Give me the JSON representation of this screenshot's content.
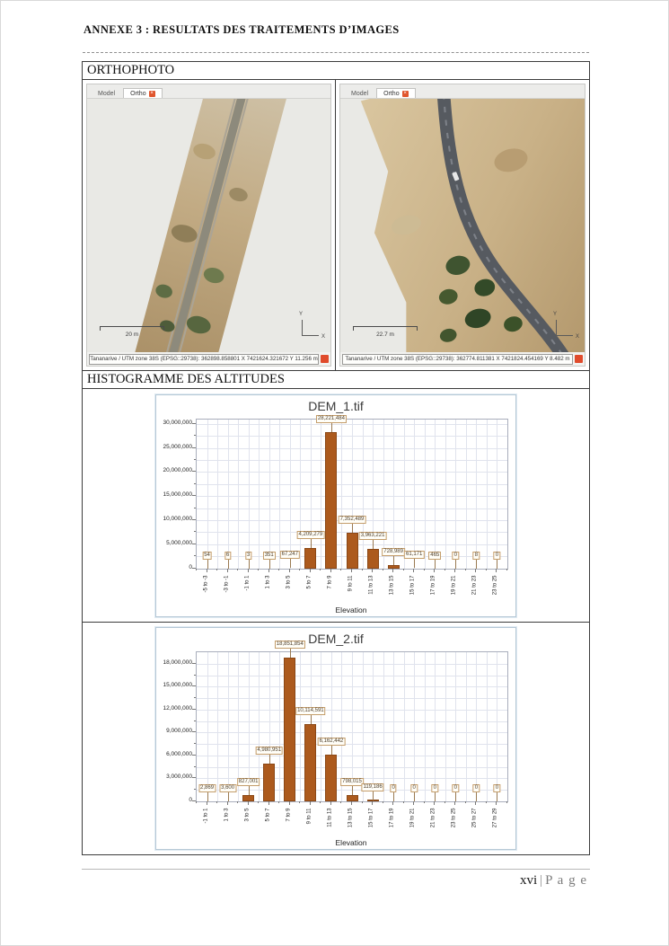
{
  "header": {
    "title": "ANNEXE 3 : RESULTATS DES TRAITEMENTS D’IMAGES"
  },
  "sections": {
    "orthophoto": "ORTHOPHOTO",
    "histogram": "HISTOGRAMME DES ALTITUDES"
  },
  "ortho_panels": [
    {
      "tab_model": "Model",
      "tab_ortho": "Ortho",
      "scale_label": "20 m",
      "axis_x": "X",
      "axis_y": "Y",
      "status": "Tananarive / UTM zone 38S (EPSG::29738): 362898.858801 X  7421624.321672 Y  11.256 m"
    },
    {
      "tab_model": "Model",
      "tab_ortho": "Ortho",
      "scale_label": "22.7 m",
      "axis_x": "X",
      "axis_y": "Y",
      "status": "Tananarive / UTM zone 38S (EPSG::29738): 362774.811381 X  7421824.454169 Y  8.482 m"
    }
  ],
  "icons": {
    "close_glyph": "×"
  },
  "colors": {
    "bar": "#ac5a1d",
    "value_box_border": "#c49d6b",
    "grid": "#e0e3ed",
    "panel_border": "#b6c8d6",
    "tab_close_red": "#e0552d",
    "status_icon_red": "#e04b2c"
  },
  "chart_data": [
    {
      "type": "bar",
      "title": "DEM_1.tif",
      "xlabel": "Elevation",
      "ylabel": "",
      "categories": [
        "-5 to -3",
        "-3 to -1",
        "-1 to 1",
        "1 to 3",
        "3 to 5",
        "5 to 7",
        "7 to 9",
        "9 to 11",
        "11 to 13",
        "13 to 15",
        "15 to 17",
        "17 to 19",
        "19 to 21",
        "21 to 23",
        "23 to 25"
      ],
      "values": [
        54,
        6,
        3,
        351,
        67247,
        4209279,
        28221484,
        7352489,
        3963221,
        728989,
        61171,
        465,
        0,
        8,
        0
      ],
      "ylim": [
        0,
        31000000
      ],
      "ytick_interval": 5000000,
      "grid": true,
      "legend": "none"
    },
    {
      "type": "bar",
      "title": "DEM_2.tif",
      "xlabel": "Elevation",
      "ylabel": "",
      "categories": [
        "-1 to 1",
        "1 to 3",
        "3 to 5",
        "5 to 7",
        "7 to 9",
        "9 to 11",
        "11 to 13",
        "13 to 15",
        "15 to 17",
        "17 to 19",
        "19 to 21",
        "21 to 23",
        "23 to 25",
        "25 to 27",
        "27 to 29"
      ],
      "values": [
        2869,
        3600,
        827001,
        4980951,
        18851854,
        10114591,
        6162442,
        798015,
        119186,
        0,
        0,
        0,
        0,
        0,
        0
      ],
      "ylim": [
        0,
        19500000
      ],
      "ytick_interval": 3000000,
      "grid": true,
      "legend": "none"
    }
  ],
  "footer": {
    "page_number": "xvi",
    "separator": "|",
    "page_word": "P a g e"
  }
}
